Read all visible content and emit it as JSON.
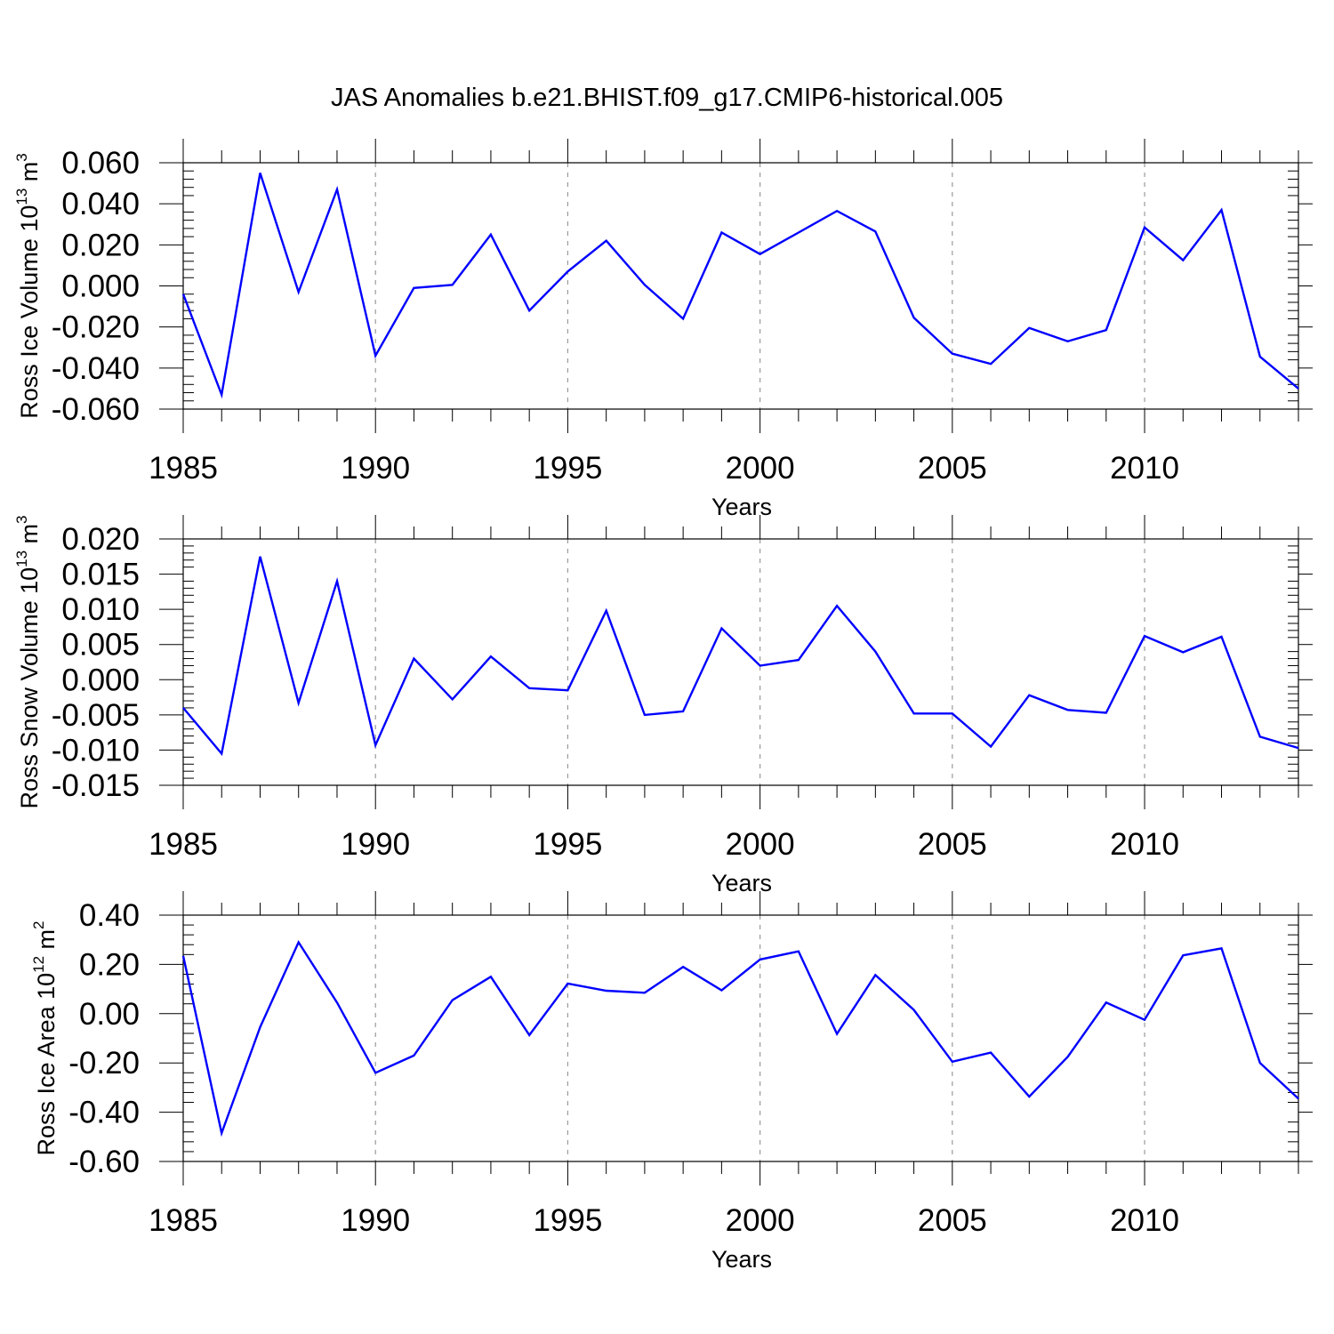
{
  "title": "JAS Anomalies b.e21.BHIST.f09_g17.CMIP6-historical.005",
  "line_color": "#0000ff",
  "chart_data": [
    {
      "type": "line",
      "ylabel_main": "Ross Ice Volume 10",
      "ylabel_exp": "13",
      "ylabel_unit": " m",
      "ylabel_unit_exp": "3",
      "xlabel": "Years",
      "xlim": [
        1985,
        2014
      ],
      "ylim": [
        -0.06,
        0.06
      ],
      "yticks": [
        -0.06,
        -0.04,
        -0.02,
        0.0,
        0.02,
        0.04,
        0.06
      ],
      "ytick_labels": [
        "-0.060",
        "-0.040",
        "-0.020",
        "0.000",
        "0.020",
        "0.040",
        "0.060"
      ],
      "xticks": [
        1985,
        1990,
        1995,
        2000,
        2005,
        2010
      ],
      "xtick_labels": [
        "1985",
        "1990",
        "1995",
        "2000",
        "2005",
        "2010"
      ],
      "x": [
        1985,
        1986,
        1987,
        1988,
        1989,
        1990,
        1991,
        1992,
        1993,
        1994,
        1995,
        1996,
        1997,
        1998,
        1999,
        2000,
        2001,
        2002,
        2003,
        2004,
        2005,
        2006,
        2007,
        2008,
        2009,
        2010,
        2011,
        2012,
        2013,
        2014
      ],
      "values": [
        -0.004,
        -0.053,
        0.055,
        -0.003,
        0.047,
        -0.034,
        -0.001,
        0.0005,
        0.025,
        -0.012,
        0.007,
        0.022,
        0.0005,
        -0.016,
        0.026,
        0.0155,
        0.026,
        0.0365,
        0.0265,
        -0.0155,
        -0.033,
        -0.038,
        -0.0205,
        -0.027,
        -0.0215,
        0.0285,
        0.0125,
        0.037,
        -0.0345,
        -0.05
      ]
    },
    {
      "type": "line",
      "ylabel_main": "Ross Snow Volume 10",
      "ylabel_exp": "13",
      "ylabel_unit": " m",
      "ylabel_unit_exp": "3",
      "xlabel": "Years",
      "xlim": [
        1985,
        2014
      ],
      "ylim": [
        -0.015,
        0.02
      ],
      "yticks": [
        -0.015,
        -0.01,
        -0.005,
        0.0,
        0.005,
        0.01,
        0.015,
        0.02
      ],
      "ytick_labels": [
        "-0.015",
        "-0.010",
        "-0.005",
        "0.000",
        "0.005",
        "0.010",
        "0.015",
        "0.020"
      ],
      "xticks": [
        1985,
        1990,
        1995,
        2000,
        2005,
        2010
      ],
      "xtick_labels": [
        "1985",
        "1990",
        "1995",
        "2000",
        "2005",
        "2010"
      ],
      "x": [
        1985,
        1986,
        1987,
        1988,
        1989,
        1990,
        1991,
        1992,
        1993,
        1994,
        1995,
        1996,
        1997,
        1998,
        1999,
        2000,
        2001,
        2002,
        2003,
        2004,
        2005,
        2006,
        2007,
        2008,
        2009,
        2010,
        2011,
        2012,
        2013,
        2014
      ],
      "values": [
        -0.004,
        -0.0105,
        0.0175,
        -0.0033,
        0.014,
        -0.0093,
        0.003,
        -0.0028,
        0.0033,
        -0.0012,
        -0.0015,
        0.0098,
        -0.005,
        -0.0045,
        0.0073,
        0.002,
        0.0028,
        0.0105,
        0.004,
        -0.0048,
        -0.0048,
        -0.0095,
        -0.0022,
        -0.0043,
        -0.0047,
        0.0062,
        0.0039,
        0.0061,
        -0.0081,
        -0.0097
      ]
    },
    {
      "type": "line",
      "ylabel_main": "Ross Ice Area 10",
      "ylabel_exp": "12",
      "ylabel_unit": " m",
      "ylabel_unit_exp": "2",
      "xlabel": "Years",
      "xlim": [
        1985,
        2014
      ],
      "ylim": [
        -0.6,
        0.4
      ],
      "yticks": [
        -0.6,
        -0.4,
        -0.2,
        0.0,
        0.2,
        0.4
      ],
      "ytick_labels": [
        "-0.60",
        "-0.40",
        "-0.20",
        "0.00",
        "0.20",
        "0.40"
      ],
      "xticks": [
        1985,
        1990,
        1995,
        2000,
        2005,
        2010
      ],
      "xtick_labels": [
        "1985",
        "1990",
        "1995",
        "2000",
        "2005",
        "2010"
      ],
      "x": [
        1985,
        1986,
        1987,
        1988,
        1989,
        1990,
        1991,
        1992,
        1993,
        1994,
        1995,
        1996,
        1997,
        1998,
        1999,
        2000,
        2001,
        2002,
        2003,
        2004,
        2005,
        2006,
        2007,
        2008,
        2009,
        2010,
        2011,
        2012,
        2013,
        2014
      ],
      "values": [
        0.235,
        -0.485,
        -0.055,
        0.29,
        0.045,
        -0.24,
        -0.17,
        0.055,
        0.15,
        -0.087,
        0.122,
        0.093,
        0.085,
        0.19,
        0.095,
        0.22,
        0.253,
        -0.082,
        0.157,
        0.015,
        -0.195,
        -0.158,
        -0.337,
        -0.175,
        0.045,
        -0.025,
        0.237,
        0.265,
        -0.2,
        -0.345
      ]
    }
  ]
}
